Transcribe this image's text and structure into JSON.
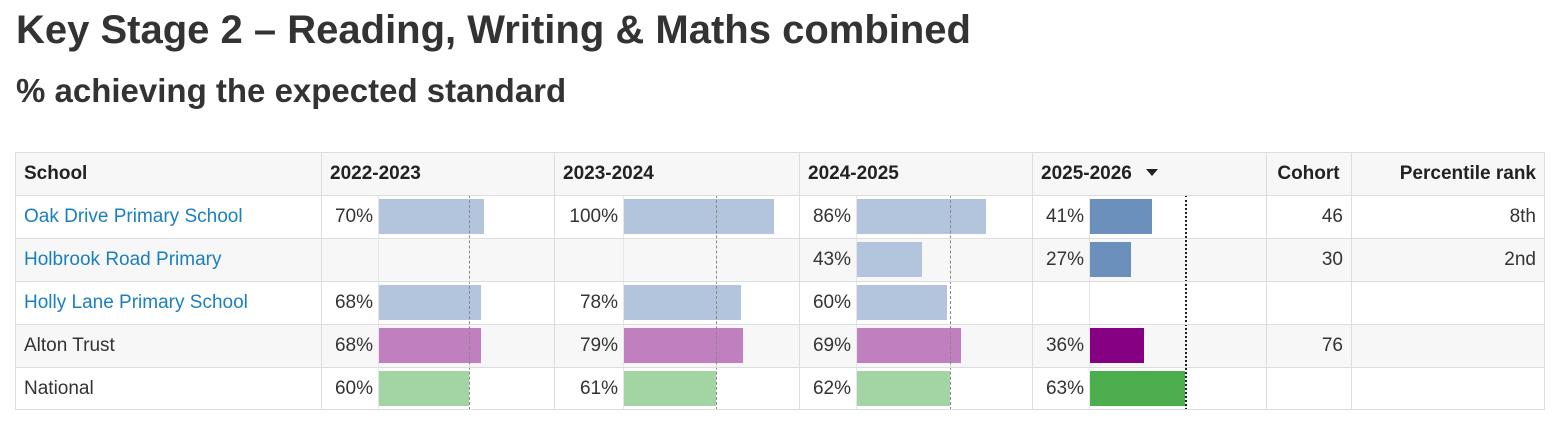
{
  "title": "Key Stage 2 – Reading, Writing & Maths combined",
  "subtitle": "% achieving the expected standard",
  "colors": {
    "school": "#b2c5dd",
    "school_current": "#6b90bc",
    "trust": "#c07fbe",
    "trust_current": "#860083",
    "national": "#a3d4a3",
    "national_current": "#4cae4c",
    "link": "#1a7fc1"
  },
  "headers": {
    "school": "School",
    "years": [
      "2022-2023",
      "2023-2024",
      "2024-2025",
      "2025-2026"
    ],
    "cohort": "Cohort",
    "percentile": "Percentile rank"
  },
  "sort_icon": "sort-desc-icon",
  "chart_data": {
    "type": "table",
    "scale_max": 100,
    "benchmark_row": "National",
    "rows": [
      {
        "school": "Oak Drive Primary School",
        "kind": "school",
        "link": true,
        "values": [
          "70%",
          "100%",
          "86%",
          "41%"
        ],
        "nums": [
          70,
          100,
          86,
          41
        ],
        "cohort": "46",
        "percentile": "8th"
      },
      {
        "school": "Holbrook Road Primary",
        "kind": "school",
        "link": true,
        "values": [
          "",
          "",
          "43%",
          "27%"
        ],
        "nums": [
          null,
          null,
          43,
          27
        ],
        "cohort": "30",
        "percentile": "2nd"
      },
      {
        "school": "Holly Lane Primary School",
        "kind": "school",
        "link": true,
        "values": [
          "68%",
          "78%",
          "60%",
          ""
        ],
        "nums": [
          68,
          78,
          60,
          null
        ],
        "cohort": "",
        "percentile": ""
      },
      {
        "school": "Alton Trust",
        "kind": "trust",
        "link": false,
        "values": [
          "68%",
          "79%",
          "69%",
          "36%"
        ],
        "nums": [
          68,
          79,
          69,
          36
        ],
        "cohort": "76",
        "percentile": ""
      },
      {
        "school": "National",
        "kind": "national",
        "link": false,
        "values": [
          "60%",
          "61%",
          "62%",
          "63%"
        ],
        "nums": [
          60,
          61,
          62,
          63
        ],
        "cohort": "",
        "percentile": ""
      }
    ]
  }
}
